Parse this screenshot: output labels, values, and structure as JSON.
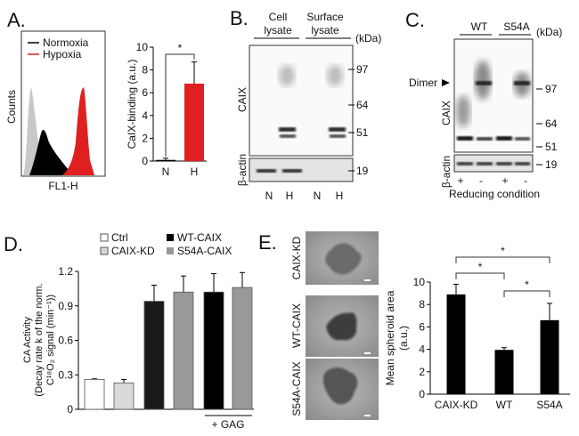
{
  "panels": {
    "a": "A.",
    "b": "B.",
    "c": "C.",
    "d": "D.",
    "e": "E."
  },
  "panel_a": {
    "legend": [
      "Normoxia",
      "Hypoxia"
    ],
    "hist_ylabel": "Counts",
    "hist_xlabel": "FL1-H",
    "colors": {
      "normoxia": "#000000",
      "hypoxia": "#e02020",
      "control": "#c8c8c8"
    }
  },
  "panel_b": {
    "headers": [
      "Cell",
      "lysate",
      "Surface",
      "lysate"
    ],
    "kda": "(kDa)",
    "markers": [
      "97",
      "64",
      "51",
      "19"
    ],
    "row_labels": [
      "CAIX",
      "β-actin"
    ],
    "lanes": [
      "N",
      "H",
      "N",
      "H"
    ]
  },
  "panel_c": {
    "headers": [
      "WT",
      "S54A"
    ],
    "kda": "(kDa)",
    "dimer": "Dimer",
    "markers": [
      "97",
      "64",
      "51",
      "19"
    ],
    "row_labels": [
      "CAIX",
      "β-actin"
    ],
    "lanes": [
      "+",
      "-",
      "+",
      "-"
    ],
    "xlabel": "Reducing condition"
  },
  "panel_d": {
    "legend": [
      "Ctrl",
      "CAIX-KD",
      "WT-CAIX",
      "S54A-CAIX"
    ],
    "ylabel_lines": [
      "CA Activity",
      "(Decay rate k of the norm.",
      "C¹⁸O₂ signal (min⁻¹))"
    ],
    "gag": "+ GAG"
  },
  "panel_e": {
    "image_labels": [
      "CAIX-KD",
      "WT-CAIX",
      "S54A-CAIX"
    ],
    "ylabel_lines": [
      "Mean spheroid area",
      "(a.u.)"
    ],
    "sig": [
      "*",
      "*",
      "*"
    ]
  },
  "chart_data": [
    {
      "type": "bar",
      "title": "",
      "categories": [
        "N",
        "H"
      ],
      "values": [
        0.1,
        6.8
      ],
      "errors": [
        0.15,
        1.9
      ],
      "colors": [
        "#000000",
        "#e02020"
      ],
      "ylabel": "CaIX-binding (a.u.)",
      "xlabel": "",
      "ylim": [
        0,
        10
      ],
      "yticks": [
        "0",
        "2",
        "4",
        "6",
        "8",
        "10"
      ],
      "significance": [
        {
          "between": [
            "N",
            "H"
          ],
          "label": "*"
        }
      ]
    },
    {
      "type": "bar",
      "categories": [
        "Ctrl",
        "CAIX-KD",
        "WT-CAIX",
        "S54A-CAIX",
        "WT-CAIX + GAG",
        "S54A-CAIX + GAG"
      ],
      "values": [
        0.26,
        0.23,
        0.94,
        1.02,
        1.02,
        1.06
      ],
      "errors": [
        0.005,
        0.03,
        0.14,
        0.14,
        0.16,
        0.13
      ],
      "colors": [
        "#ffffff",
        "#d9d9d9",
        "#1a1a1a",
        "#999999",
        "#000000",
        "#999999"
      ],
      "ylabel": "CA Activity (Decay rate k of the norm. C18O2 signal (min-1))",
      "ylim": [
        0,
        1.2
      ],
      "yticks": [
        "0",
        "0.3",
        "0.6",
        "0.9",
        "1.2"
      ]
    },
    {
      "type": "bar",
      "categories": [
        "CAIX-KD",
        "WT",
        "S54A"
      ],
      "values": [
        8.9,
        3.95,
        6.6
      ],
      "errors": [
        0.9,
        0.2,
        1.5
      ],
      "colors": [
        "#000000",
        "#000000",
        "#000000"
      ],
      "ylabel": "Mean spheroid area (a.u.)",
      "ylim": [
        0,
        10
      ],
      "yticks": [
        "0",
        "2",
        "4",
        "6",
        "8",
        "10"
      ],
      "significance": [
        {
          "between": [
            "CAIX-KD",
            "S54A"
          ],
          "label": "*"
        },
        {
          "between": [
            "CAIX-KD",
            "WT"
          ],
          "label": "*"
        },
        {
          "between": [
            "WT",
            "S54A"
          ],
          "label": "*"
        }
      ]
    }
  ]
}
